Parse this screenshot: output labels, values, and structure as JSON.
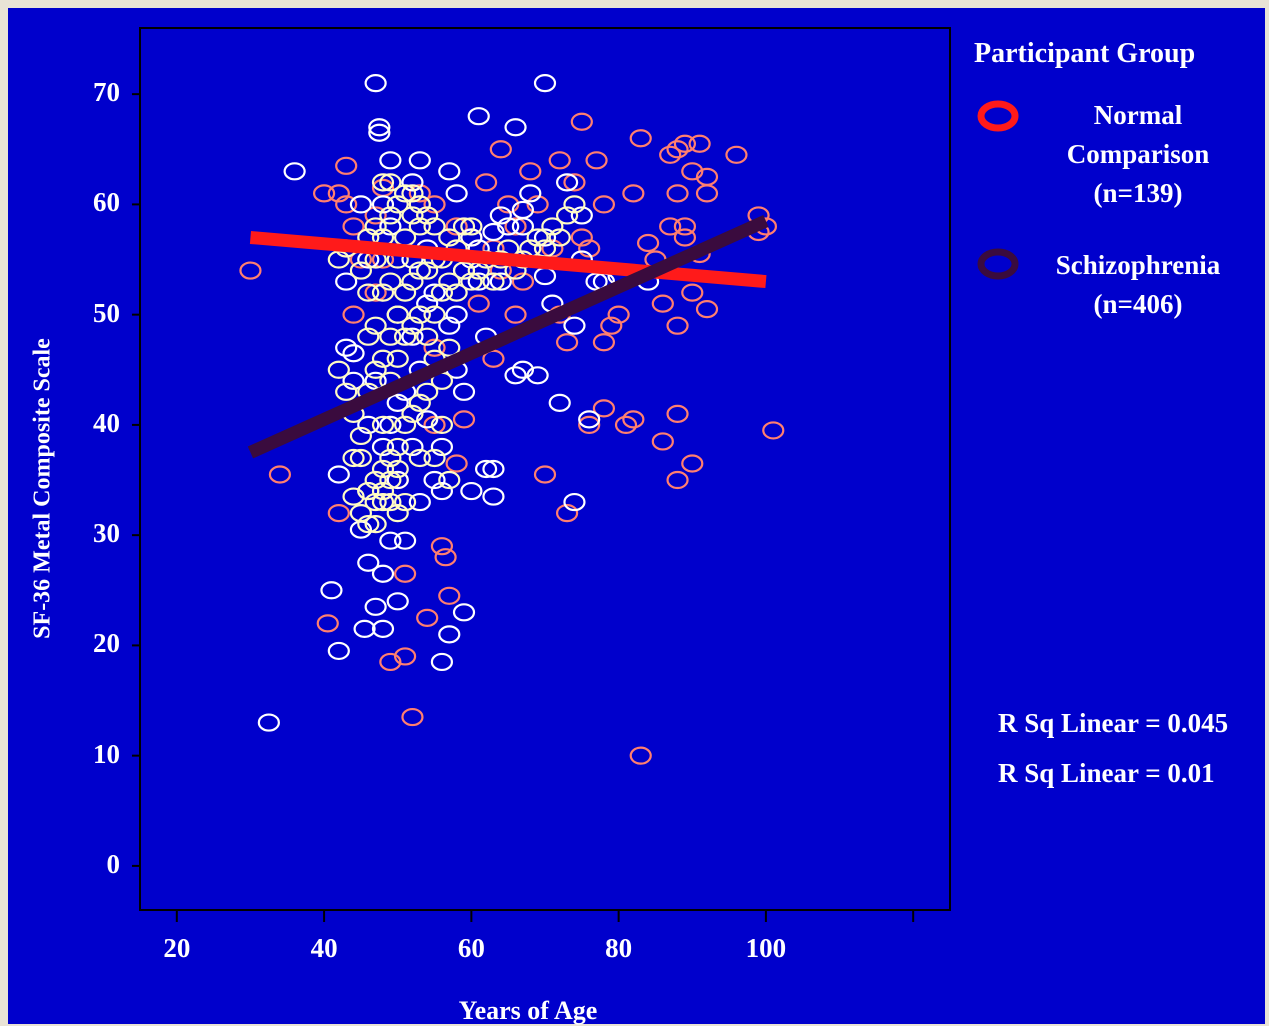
{
  "chart_data": {
    "type": "scatter",
    "xlabel": "Years of Age",
    "ylabel": "SF-36 Metal Composite Scale",
    "xlim": [
      15,
      125
    ],
    "ylim": [
      -4,
      76
    ],
    "x_ticks": [
      20,
      40,
      60,
      80,
      100
    ],
    "y_ticks": [
      0,
      10,
      20,
      30,
      40,
      50,
      60,
      70
    ],
    "grid": false,
    "legend": {
      "title": "Participant Group",
      "placement": "right",
      "entries": [
        {
          "label": "Normal Comparison (n=139)",
          "color": "#ff1a1a"
        },
        {
          "label": "Schizophrenia (n=406)",
          "color": "#3a0b3e"
        }
      ]
    },
    "annotations": [
      "R Sq Linear = 0.045",
      "R Sq Linear = 0.01"
    ],
    "series": [
      {
        "name": "Normal Comparison",
        "marker_color": "#ff7f6f",
        "line_color": "#ff1a1a",
        "fit_line": {
          "x": [
            30,
            100
          ],
          "y": [
            57,
            53
          ]
        },
        "points": [
          [
            30,
            54
          ],
          [
            34,
            35.5
          ],
          [
            40,
            61
          ],
          [
            40.5,
            22
          ],
          [
            42,
            61
          ],
          [
            42,
            32
          ],
          [
            43,
            63.5
          ],
          [
            43,
            60
          ],
          [
            44,
            50
          ],
          [
            47,
            52
          ],
          [
            48,
            55
          ],
          [
            48,
            61.5
          ],
          [
            50,
            35
          ],
          [
            51,
            26.5
          ],
          [
            51,
            19
          ],
          [
            52,
            13.5
          ],
          [
            49,
            18.5
          ],
          [
            53,
            60
          ],
          [
            54,
            22.5
          ],
          [
            55,
            47
          ],
          [
            55,
            40
          ],
          [
            56,
            29
          ],
          [
            56.5,
            28
          ],
          [
            57,
            24.5
          ],
          [
            58,
            36.5
          ],
          [
            59,
            40.5
          ],
          [
            60,
            57
          ],
          [
            61,
            51
          ],
          [
            62,
            62
          ],
          [
            63,
            56
          ],
          [
            63,
            46
          ],
          [
            64,
            65
          ],
          [
            65,
            60
          ],
          [
            66,
            50
          ],
          [
            67,
            53
          ],
          [
            68,
            63
          ],
          [
            70,
            35.5
          ],
          [
            72,
            64
          ],
          [
            73,
            32
          ],
          [
            73,
            47.5
          ],
          [
            74,
            62
          ],
          [
            75,
            57
          ],
          [
            75,
            67.5
          ],
          [
            76,
            40
          ],
          [
            77,
            64
          ],
          [
            78,
            60
          ],
          [
            78,
            47.5
          ],
          [
            78,
            41.5
          ],
          [
            79,
            49
          ],
          [
            80,
            50
          ],
          [
            81,
            40
          ],
          [
            82,
            40.5
          ],
          [
            82,
            61
          ],
          [
            83,
            66
          ],
          [
            83,
            10
          ],
          [
            84,
            56.5
          ],
          [
            85,
            55
          ],
          [
            86,
            51
          ],
          [
            86,
            38.5
          ],
          [
            87,
            64.5
          ],
          [
            87,
            58
          ],
          [
            88,
            65
          ],
          [
            88,
            61
          ],
          [
            88,
            49
          ],
          [
            88,
            41
          ],
          [
            88,
            35
          ],
          [
            89,
            65.5
          ],
          [
            89,
            58
          ],
          [
            89,
            57
          ],
          [
            90,
            63
          ],
          [
            90,
            52
          ],
          [
            91,
            65.5
          ],
          [
            91,
            55.5
          ],
          [
            90,
            36.5
          ],
          [
            92,
            50.5
          ],
          [
            92,
            61
          ],
          [
            92,
            62.5
          ],
          [
            96,
            64.5
          ],
          [
            99,
            59
          ],
          [
            99,
            57.5
          ],
          [
            100,
            58
          ],
          [
            101,
            39.5
          ],
          [
            54,
            59
          ],
          [
            58,
            58
          ],
          [
            47,
            59
          ],
          [
            71,
            56
          ],
          [
            76,
            56
          ],
          [
            55,
            60
          ],
          [
            44,
            58
          ],
          [
            66,
            58
          ],
          [
            69,
            60
          ],
          [
            45,
            55
          ],
          [
            53,
            61
          ],
          [
            64,
            54
          ],
          [
            72,
            50
          ]
        ]
      },
      {
        "name": "Schizophrenia",
        "marker_color": "#ffffff",
        "line_color": "#3a0b3e",
        "fit_line": {
          "x": [
            30,
            100
          ],
          "y": [
            37.5,
            58.5
          ]
        },
        "points": [
          [
            32.5,
            13
          ],
          [
            36,
            63
          ],
          [
            41,
            25
          ],
          [
            42,
            19.5
          ],
          [
            42,
            35.5
          ],
          [
            43,
            47
          ],
          [
            43,
            53
          ],
          [
            44,
            44
          ],
          [
            45,
            30.5
          ],
          [
            45.5,
            21.5
          ],
          [
            46,
            55
          ],
          [
            46,
            40
          ],
          [
            46,
            27.5
          ],
          [
            47,
            23.5
          ],
          [
            47,
            71
          ],
          [
            47.5,
            67
          ],
          [
            47.5,
            66.5
          ],
          [
            48,
            60
          ],
          [
            48,
            26.5
          ],
          [
            48,
            21.5
          ],
          [
            49,
            64
          ],
          [
            49,
            58
          ],
          [
            49,
            29.5
          ],
          [
            50,
            24
          ],
          [
            50,
            35
          ],
          [
            50,
            42
          ],
          [
            51,
            29.5
          ],
          [
            52,
            38
          ],
          [
            52,
            62
          ],
          [
            53,
            64
          ],
          [
            53,
            33
          ],
          [
            54,
            40.5
          ],
          [
            54,
            51
          ],
          [
            55,
            35
          ],
          [
            56,
            34
          ],
          [
            56,
            18.5
          ],
          [
            57,
            21
          ],
          [
            57,
            63
          ],
          [
            58,
            45
          ],
          [
            58,
            50
          ],
          [
            59,
            43
          ],
          [
            59,
            23
          ],
          [
            60,
            34
          ],
          [
            60,
            57
          ],
          [
            61,
            68
          ],
          [
            61,
            53
          ],
          [
            62,
            48
          ],
          [
            62,
            36
          ],
          [
            63,
            33.5
          ],
          [
            63,
            36
          ],
          [
            63,
            57.5
          ],
          [
            64,
            53
          ],
          [
            65,
            58
          ],
          [
            66,
            44.5
          ],
          [
            66,
            67
          ],
          [
            67,
            45
          ],
          [
            67,
            59.5
          ],
          [
            68,
            61
          ],
          [
            69,
            44.5
          ],
          [
            70,
            71
          ],
          [
            70,
            53.5
          ],
          [
            71,
            51
          ],
          [
            72,
            42
          ],
          [
            73,
            62
          ],
          [
            74,
            49
          ],
          [
            74,
            33
          ],
          [
            75,
            59
          ],
          [
            75,
            55
          ],
          [
            76,
            40.5
          ],
          [
            77,
            53
          ],
          [
            78,
            53
          ],
          [
            80,
            53.5
          ],
          [
            84,
            53
          ],
          [
            44,
            46.5
          ],
          [
            45,
            60
          ],
          [
            47,
            44
          ],
          [
            50,
            50
          ],
          [
            52,
            55
          ],
          [
            55,
            52
          ],
          [
            57,
            49
          ],
          [
            60,
            55
          ],
          [
            58,
            61
          ],
          [
            54,
            56
          ],
          [
            52,
            48
          ],
          [
            48,
            38
          ],
          [
            46,
            34
          ],
          [
            49,
            40
          ],
          [
            51,
            43
          ],
          [
            53,
            45
          ],
          [
            56,
            38
          ],
          [
            59,
            54
          ],
          [
            61,
            56
          ],
          [
            64,
            59
          ],
          [
            67,
            58
          ],
          [
            70,
            57
          ]
        ]
      },
      {
        "name": "",
        "marker_color": "#fffbc4",
        "points": [
          [
            42,
            45
          ],
          [
            42,
            55
          ],
          [
            43,
            56
          ],
          [
            43,
            43
          ],
          [
            44,
            33.5
          ],
          [
            44,
            37
          ],
          [
            44,
            41
          ],
          [
            45,
            32
          ],
          [
            45,
            39
          ],
          [
            45,
            54
          ],
          [
            46,
            43
          ],
          [
            46,
            48
          ],
          [
            46,
            34
          ],
          [
            46,
            52
          ],
          [
            46,
            57
          ],
          [
            47,
            31
          ],
          [
            47,
            35
          ],
          [
            47,
            45
          ],
          [
            47,
            49
          ],
          [
            47,
            55
          ],
          [
            47,
            58
          ],
          [
            48,
            33
          ],
          [
            48,
            36
          ],
          [
            48,
            40
          ],
          [
            48,
            46
          ],
          [
            48,
            52
          ],
          [
            48,
            57
          ],
          [
            48,
            62
          ],
          [
            49,
            33
          ],
          [
            49,
            37
          ],
          [
            49,
            44
          ],
          [
            49,
            48
          ],
          [
            49,
            53
          ],
          [
            49,
            59
          ],
          [
            49,
            62
          ],
          [
            50,
            32
          ],
          [
            50,
            38
          ],
          [
            50,
            46
          ],
          [
            50,
            50
          ],
          [
            50,
            55
          ],
          [
            50,
            60
          ],
          [
            51,
            33
          ],
          [
            51,
            40
          ],
          [
            51,
            48
          ],
          [
            51,
            52
          ],
          [
            51,
            57
          ],
          [
            51,
            61
          ],
          [
            52,
            41
          ],
          [
            52,
            49
          ],
          [
            52,
            53
          ],
          [
            52,
            59
          ],
          [
            52,
            61
          ],
          [
            53,
            42
          ],
          [
            53,
            50
          ],
          [
            53,
            54
          ],
          [
            53,
            58
          ],
          [
            53,
            60
          ],
          [
            54,
            43
          ],
          [
            54,
            48
          ],
          [
            54,
            54
          ],
          [
            54,
            59
          ],
          [
            55,
            46
          ],
          [
            55,
            50
          ],
          [
            55,
            55
          ],
          [
            55,
            58
          ],
          [
            56,
            44
          ],
          [
            56,
            52
          ],
          [
            56,
            55
          ],
          [
            57,
            47
          ],
          [
            57,
            53
          ],
          [
            57,
            57
          ],
          [
            58,
            52
          ],
          [
            58,
            56
          ],
          [
            59,
            54
          ],
          [
            59,
            58
          ],
          [
            60,
            53
          ],
          [
            60,
            58
          ],
          [
            61,
            54
          ],
          [
            62,
            55
          ],
          [
            63,
            53
          ],
          [
            64,
            55
          ],
          [
            65,
            56
          ],
          [
            66,
            54
          ],
          [
            67,
            55
          ],
          [
            68,
            56
          ],
          [
            69,
            57
          ],
          [
            70,
            56
          ],
          [
            71,
            58
          ],
          [
            72,
            57
          ],
          [
            73,
            59
          ],
          [
            74,
            60
          ],
          [
            56,
            40
          ],
          [
            55,
            37
          ],
          [
            57,
            35
          ],
          [
            53,
            37
          ],
          [
            45,
            37
          ],
          [
            46,
            31
          ],
          [
            47,
            33
          ],
          [
            48,
            34
          ],
          [
            49,
            35
          ],
          [
            50,
            36
          ]
        ]
      }
    ]
  }
}
